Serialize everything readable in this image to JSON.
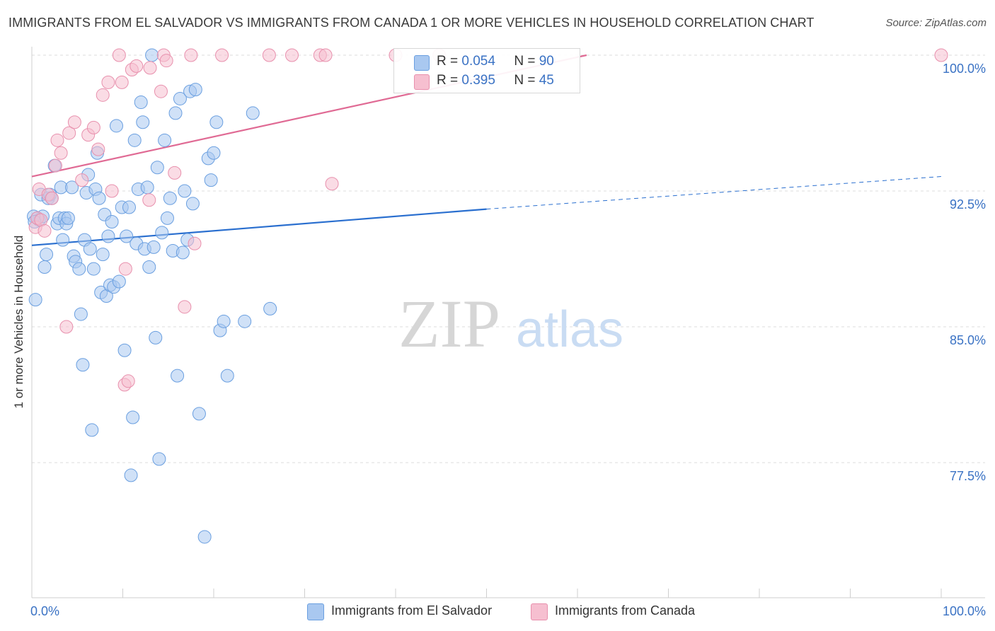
{
  "title": "IMMIGRANTS FROM EL SALVADOR VS IMMIGRANTS FROM CANADA 1 OR MORE VEHICLES IN HOUSEHOLD CORRELATION CHART",
  "source": "Source: ZipAtlas.com",
  "watermark": {
    "zip": "ZIP",
    "atlas": "atlas"
  },
  "legend": {
    "rows": [
      {
        "r_label": "R =",
        "r_value": "0.054",
        "n_label": "N =",
        "n_value": "90",
        "color": "#a9c8f0"
      },
      {
        "r_label": "R =",
        "r_value": "0.395",
        "n_label": "N =",
        "n_value": "45",
        "color": "#f6bfd0"
      }
    ]
  },
  "bottom_legend": {
    "series1": "Immigrants from El Salvador",
    "series2": "Immigrants from Canada"
  },
  "chart_data": {
    "type": "scatter",
    "title": "IMMIGRANTS FROM EL SALVADOR VS IMMIGRANTS FROM CANADA 1 OR MORE VEHICLES IN HOUSEHOLD CORRELATION CHART",
    "xlabel": "",
    "ylabel": "1 or more Vehicles in Household",
    "xlim": [
      0,
      100
    ],
    "ylim": [
      71.5,
      101.2
    ],
    "x_tick_labels": [
      "0.0%",
      "100.0%"
    ],
    "y_ticks": [
      {
        "value": 100.0,
        "label": "100.0%"
      },
      {
        "value": 92.5,
        "label": "92.5%"
      },
      {
        "value": 85.0,
        "label": "85.0%"
      },
      {
        "value": 77.5,
        "label": "77.5%"
      }
    ],
    "series": [
      {
        "name": "Immigrants from El Salvador",
        "color": "#6a9fe0",
        "fill": "#a9c8f0",
        "trend": {
          "x0": 0,
          "y0": 89.5,
          "x1": 50,
          "y1": 91.5,
          "dashed_to_x": 100,
          "dashed_to_y": 93.3,
          "color": "#2a6fcf"
        },
        "points": [
          [
            0.4,
            86.5
          ],
          [
            0.6,
            91.0
          ],
          [
            0.8,
            90.9
          ],
          [
            1.0,
            92.3
          ],
          [
            1.2,
            91.1
          ],
          [
            1.4,
            88.3
          ],
          [
            1.6,
            89.0
          ],
          [
            1.8,
            92.1
          ],
          [
            2.0,
            92.3
          ],
          [
            2.2,
            92.1
          ],
          [
            2.5,
            93.9
          ],
          [
            2.8,
            90.7
          ],
          [
            3.0,
            91.0
          ],
          [
            3.2,
            92.7
          ],
          [
            3.4,
            89.8
          ],
          [
            3.6,
            91.0
          ],
          [
            3.8,
            90.7
          ],
          [
            4.0,
            91.0
          ],
          [
            4.4,
            92.7
          ],
          [
            4.6,
            88.9
          ],
          [
            4.8,
            88.6
          ],
          [
            5.2,
            88.2
          ],
          [
            5.4,
            85.7
          ],
          [
            5.6,
            82.9
          ],
          [
            5.8,
            89.8
          ],
          [
            6.0,
            92.4
          ],
          [
            6.2,
            93.4
          ],
          [
            6.4,
            89.3
          ],
          [
            6.6,
            79.3
          ],
          [
            6.8,
            88.2
          ],
          [
            7.0,
            92.6
          ],
          [
            7.2,
            94.6
          ],
          [
            7.4,
            92.1
          ],
          [
            7.6,
            86.9
          ],
          [
            7.8,
            89.0
          ],
          [
            8.0,
            91.2
          ],
          [
            8.2,
            86.7
          ],
          [
            8.4,
            90.0
          ],
          [
            8.6,
            87.3
          ],
          [
            8.8,
            90.8
          ],
          [
            9.0,
            87.2
          ],
          [
            9.3,
            96.1
          ],
          [
            9.6,
            87.5
          ],
          [
            9.9,
            91.6
          ],
          [
            10.2,
            83.7
          ],
          [
            10.4,
            90.0
          ],
          [
            10.7,
            91.6
          ],
          [
            10.9,
            76.8
          ],
          [
            11.1,
            80.0
          ],
          [
            11.3,
            95.3
          ],
          [
            11.5,
            89.6
          ],
          [
            11.7,
            92.6
          ],
          [
            12.0,
            97.4
          ],
          [
            12.2,
            96.3
          ],
          [
            12.4,
            89.3
          ],
          [
            12.7,
            92.7
          ],
          [
            12.9,
            88.3
          ],
          [
            13.2,
            100.0
          ],
          [
            13.4,
            89.4
          ],
          [
            13.6,
            84.4
          ],
          [
            13.8,
            93.8
          ],
          [
            14.0,
            77.7
          ],
          [
            14.3,
            90.2
          ],
          [
            14.6,
            95.3
          ],
          [
            14.9,
            91.0
          ],
          [
            15.2,
            92.1
          ],
          [
            15.5,
            89.2
          ],
          [
            15.8,
            96.8
          ],
          [
            16.0,
            82.3
          ],
          [
            16.3,
            97.6
          ],
          [
            16.6,
            89.1
          ],
          [
            16.8,
            92.5
          ],
          [
            17.1,
            89.8
          ],
          [
            17.4,
            98.0
          ],
          [
            17.7,
            91.8
          ],
          [
            18.0,
            98.1
          ],
          [
            18.4,
            80.2
          ],
          [
            19.0,
            73.4
          ],
          [
            19.4,
            94.3
          ],
          [
            19.7,
            93.1
          ],
          [
            20.0,
            94.6
          ],
          [
            20.3,
            96.3
          ],
          [
            20.7,
            84.8
          ],
          [
            21.1,
            85.3
          ],
          [
            21.5,
            82.3
          ],
          [
            23.4,
            85.3
          ],
          [
            24.3,
            96.8
          ],
          [
            26.2,
            86.0
          ],
          [
            0.2,
            91.1
          ],
          [
            0.3,
            90.8
          ]
        ]
      },
      {
        "name": "Immigrants from Canada",
        "color": "#e890ad",
        "fill": "#f6bfd0",
        "trend": {
          "x0": 0,
          "y0": 93.3,
          "x1": 61,
          "y1": 100.0,
          "color": "#e06a94"
        },
        "points": [
          [
            0.4,
            90.5
          ],
          [
            0.6,
            91.0
          ],
          [
            0.8,
            92.6
          ],
          [
            1.0,
            90.9
          ],
          [
            1.4,
            90.3
          ],
          [
            1.8,
            92.3
          ],
          [
            2.2,
            92.1
          ],
          [
            2.6,
            93.9
          ],
          [
            2.8,
            95.3
          ],
          [
            3.2,
            94.6
          ],
          [
            3.8,
            85.0
          ],
          [
            4.1,
            95.7
          ],
          [
            4.7,
            96.3
          ],
          [
            5.5,
            93.1
          ],
          [
            6.2,
            95.6
          ],
          [
            6.8,
            96.0
          ],
          [
            7.3,
            94.8
          ],
          [
            7.8,
            97.8
          ],
          [
            8.4,
            98.5
          ],
          [
            8.8,
            92.5
          ],
          [
            9.6,
            100.0
          ],
          [
            9.9,
            98.5
          ],
          [
            10.2,
            81.8
          ],
          [
            10.3,
            88.2
          ],
          [
            10.6,
            82.0
          ],
          [
            11.0,
            99.2
          ],
          [
            11.5,
            99.4
          ],
          [
            12.9,
            92.0
          ],
          [
            13.0,
            99.3
          ],
          [
            14.2,
            98.0
          ],
          [
            14.5,
            100.0
          ],
          [
            14.8,
            99.7
          ],
          [
            15.7,
            93.5
          ],
          [
            16.8,
            86.1
          ],
          [
            17.5,
            100.0
          ],
          [
            17.9,
            89.6
          ],
          [
            20.9,
            100.0
          ],
          [
            26.1,
            100.0
          ],
          [
            28.6,
            100.0
          ],
          [
            31.7,
            100.0
          ],
          [
            32.3,
            100.0
          ],
          [
            33.0,
            92.9
          ],
          [
            40.0,
            100.0
          ],
          [
            44.8,
            100.0
          ],
          [
            100.0,
            100.0
          ]
        ]
      }
    ]
  }
}
